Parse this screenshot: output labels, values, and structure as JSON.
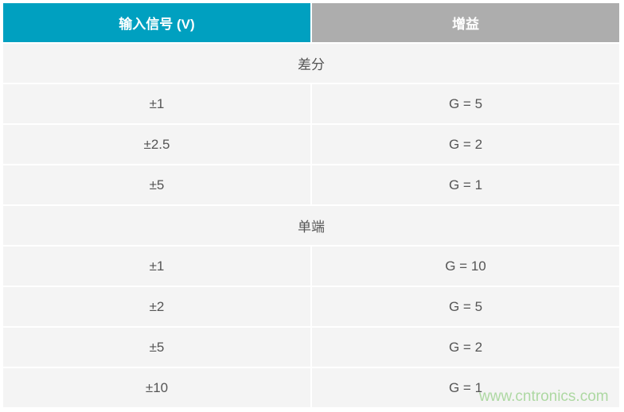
{
  "colors": {
    "header_accent": "#00a0c0",
    "header_gray": "#adadad",
    "row_bg": "#f4f4f4"
  },
  "header": {
    "col1": "输入信号 (V)",
    "col2": "增益"
  },
  "sections": [
    {
      "title": "差分",
      "rows": [
        {
          "input": "±1",
          "gain": "G = 5"
        },
        {
          "input": "±2.5",
          "gain": "G = 2"
        },
        {
          "input": "±5",
          "gain": "G = 1"
        }
      ]
    },
    {
      "title": "单端",
      "rows": [
        {
          "input": "±1",
          "gain": "G = 10"
        },
        {
          "input": "±2",
          "gain": "G = 5"
        },
        {
          "input": "±5",
          "gain": "G = 2"
        },
        {
          "input": "±10",
          "gain": "G = 1"
        }
      ]
    }
  ],
  "watermark": "www.cntronics.com"
}
